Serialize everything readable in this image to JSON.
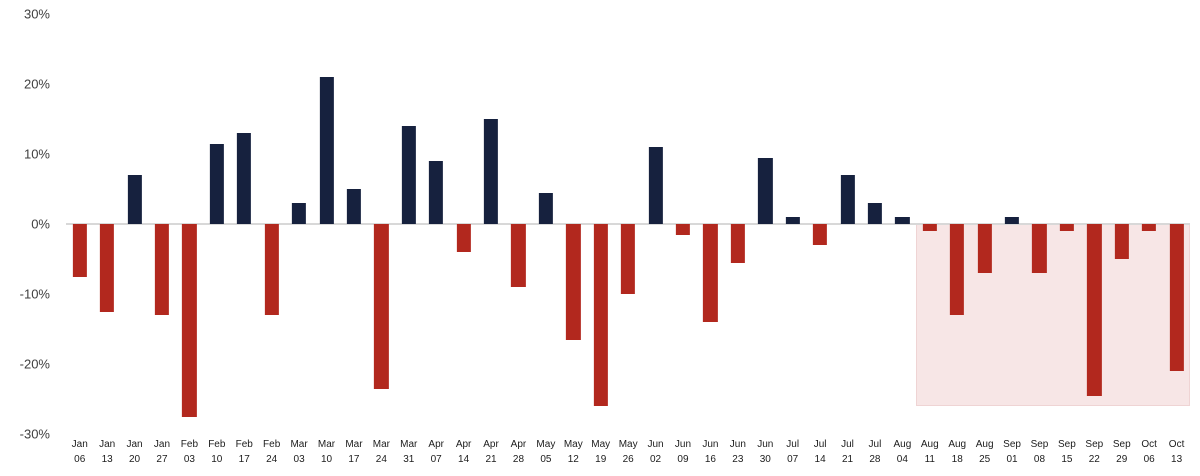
{
  "chart_data": {
    "type": "bar",
    "title": "",
    "xlabel": "",
    "ylabel": "",
    "categories": [
      "Jan 06",
      "Jan 13",
      "Jan 20",
      "Jan 27",
      "Feb 03",
      "Feb 10",
      "Feb 17",
      "Feb 24",
      "Mar 03",
      "Mar 10",
      "Mar 17",
      "Mar 24",
      "Mar 31",
      "Apr 07",
      "Apr 14",
      "Apr 21",
      "Apr 28",
      "May 05",
      "May 12",
      "May 19",
      "May 26",
      "Jun 02",
      "Jun 09",
      "Jun 16",
      "Jun 23",
      "Jun 30",
      "Jul 07",
      "Jul 14",
      "Jul 21",
      "Jul 28",
      "Aug 04",
      "Aug 11",
      "Aug 18",
      "Aug 25",
      "Sep 01",
      "Sep 08",
      "Sep 15",
      "Sep 22",
      "Sep 29",
      "Oct 06",
      "Oct 13"
    ],
    "values": [
      -7.5,
      -12.5,
      7,
      -13,
      -27.5,
      11.5,
      13,
      -13,
      3,
      21,
      5,
      -23.5,
      14,
      9,
      -4,
      15,
      -9,
      4.5,
      -16.5,
      -26,
      -10,
      11,
      -1.5,
      -14,
      -5.5,
      9.5,
      1,
      -3,
      7,
      3,
      1,
      -1,
      -13,
      -7,
      1,
      -7,
      -1,
      -24.5,
      -5,
      -1,
      -21
    ],
    "ylim": [
      -30,
      30
    ],
    "yticks": [
      30,
      20,
      10,
      0,
      -10,
      -20,
      -30
    ],
    "ytick_labels": [
      "30%",
      "20%",
      "10%",
      "0%",
      "-10%",
      "-20%",
      "-30%"
    ],
    "grid": false,
    "legend": false,
    "positive_color": "#16213e",
    "negative_color": "#b2281e",
    "highlight": {
      "start_category": "Aug 11",
      "end_category": "Oct 13",
      "from_value": 0,
      "to_value": -26,
      "fill": "#f7e6e6"
    }
  }
}
